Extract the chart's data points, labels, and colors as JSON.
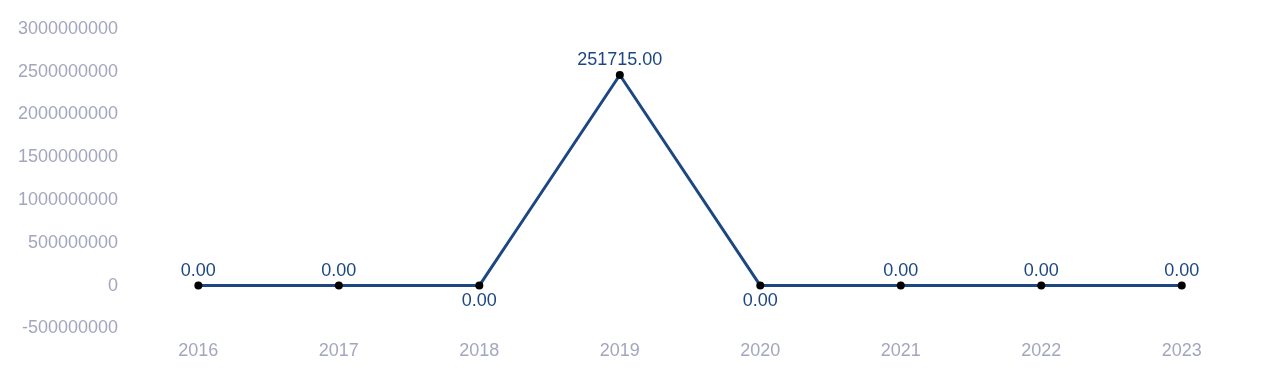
{
  "chart_data": {
    "type": "line",
    "categories": [
      "2016",
      "2017",
      "2018",
      "2019",
      "2020",
      "2021",
      "2022",
      "2023"
    ],
    "series": [
      {
        "color": "#1d4783",
        "values": [
          0,
          0,
          0,
          2460000000,
          0,
          0,
          0,
          0
        ]
      }
    ],
    "annotations": [
      {
        "text": "0.00",
        "x": "2016",
        "y": 0
      },
      {
        "text": "0.00",
        "x": "2017",
        "y": 0
      },
      {
        "text": "0.00",
        "x": "2018",
        "y": 0
      },
      {
        "text": "251715.00",
        "x": "2019",
        "y": 2460000000
      },
      {
        "text": "0.00",
        "x": "2020",
        "y": 0
      },
      {
        "text": "0.00",
        "x": "2021",
        "y": 0
      },
      {
        "text": "0.00",
        "x": "2022",
        "y": 0
      },
      {
        "text": "0.00",
        "x": "2023",
        "y": 0
      }
    ],
    "ylim": [
      -500000000,
      3000000000
    ],
    "yticks": [
      -500000000,
      0,
      500000000,
      1000000000,
      1500000000,
      2000000000,
      2500000000,
      3000000000
    ],
    "grid": false,
    "legend": false,
    "marker": "circle",
    "line_style": "solid"
  }
}
